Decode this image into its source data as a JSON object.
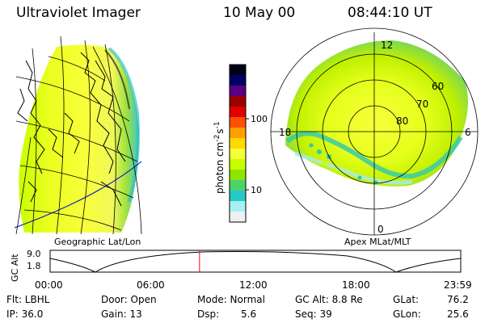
{
  "header": {
    "instrument": "Ultraviolet Imager",
    "date": "10 May 00",
    "time": "08:44:10 UT"
  },
  "colorbar": {
    "unit_prefix": "photon cm",
    "unit_exp1": "-2",
    "unit_mid": "s",
    "unit_exp2": "-1",
    "tick_labels": [
      "100",
      "10"
    ],
    "scale": "log",
    "colors": [
      "#00001a",
      "#000066",
      "#5a0080",
      "#9b0000",
      "#e00000",
      "#ff5000",
      "#ffa000",
      "#ffd900",
      "#f5ff3a",
      "#c8ff00",
      "#8ee500",
      "#4ed26a",
      "#26c8c8",
      "#a8f0f0",
      "#f0f0f0"
    ]
  },
  "left_map": {
    "projection_label": "Geographic Lat/Lon"
  },
  "right_map": {
    "projection_label": "Apex MLat/MLT",
    "mlt_labels": {
      "top": "12",
      "bottom": "0",
      "left": "18",
      "right": "6"
    },
    "lat_labels": [
      "60",
      "70",
      "80"
    ]
  },
  "altitude_plot": {
    "axis_label": "GC Alt",
    "y_ticks": [
      "9.0",
      "1.8"
    ],
    "x_ticks": [
      "00:00",
      "06:00",
      "12:00",
      "18:00",
      "23:59"
    ],
    "current_time_marker": "08:44",
    "marker_color": "#ff0000"
  },
  "info": {
    "flt": "Flt: LBHL",
    "ip": "IP: 36.0",
    "door": "Door: Open",
    "gain": "Gain: 13",
    "mode": "Mode: Normal",
    "dsp_label": "Dsp:",
    "dsp_value": "5.6",
    "gcalt": "GC Alt: 8.8 Re",
    "seq": "Seq: 39",
    "glat_label": "GLat:",
    "glat_value": "76.2",
    "glon_label": "GLon:",
    "glon_value": "25.6"
  }
}
